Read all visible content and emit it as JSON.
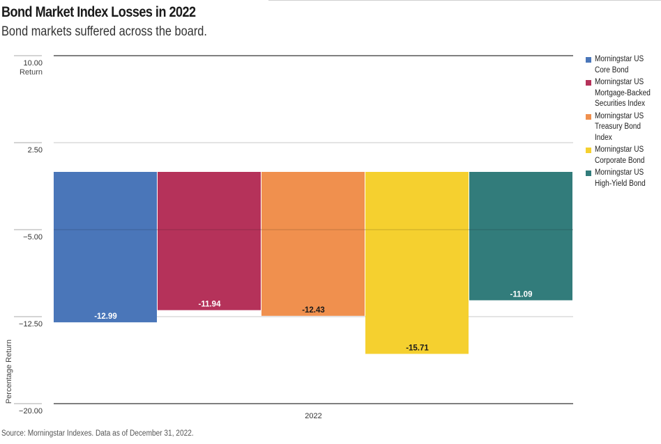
{
  "header": {
    "title": "Bond Market Index Losses in 2022",
    "subtitle": "Bond markets suffered across the board."
  },
  "footer": {
    "source": "Source: Morningstar Indexes.  Data as of December 31, 2022."
  },
  "chart_data": {
    "type": "bar",
    "categories": [
      "2022"
    ],
    "ylabel": "Percentage Return",
    "ylabel_unit": "Return",
    "ylim": [
      -20,
      10
    ],
    "yticks": [
      {
        "value": 10,
        "label": "10.00"
      },
      {
        "value": 2.5,
        "label": "2.50"
      },
      {
        "value": -5,
        "label": "−5.00"
      },
      {
        "value": -12.5,
        "label": "−12.50"
      },
      {
        "value": -20,
        "label": "−20.00"
      }
    ],
    "grid": true,
    "legend_position": "right",
    "series": [
      {
        "name": "Morningstar US\nCore Bond",
        "values": [
          -12.99
        ],
        "label": "-12.99",
        "color": "#4a76b9",
        "label_color": "#ffffff"
      },
      {
        "name": "Morningstar US\nMortgage-Backed\nSecurities Index",
        "values": [
          -11.94
        ],
        "label": "-11.94",
        "color": "#b5325a",
        "label_color": "#ffffff"
      },
      {
        "name": "Morningstar US\nTreasury Bond\nIndex",
        "values": [
          -12.43
        ],
        "label": "-12.43",
        "color": "#f0904e",
        "label_color": "#1a1a1a"
      },
      {
        "name": "Morningstar US\nCorporate Bond",
        "values": [
          -15.71
        ],
        "label": "-15.71",
        "color": "#f5d02f",
        "label_color": "#1a1a1a"
      },
      {
        "name": "Morningstar US\nHigh-Yield Bond",
        "values": [
          -11.09
        ],
        "label": "-11.09",
        "color": "#327c7b",
        "label_color": "#ffffff"
      }
    ]
  }
}
